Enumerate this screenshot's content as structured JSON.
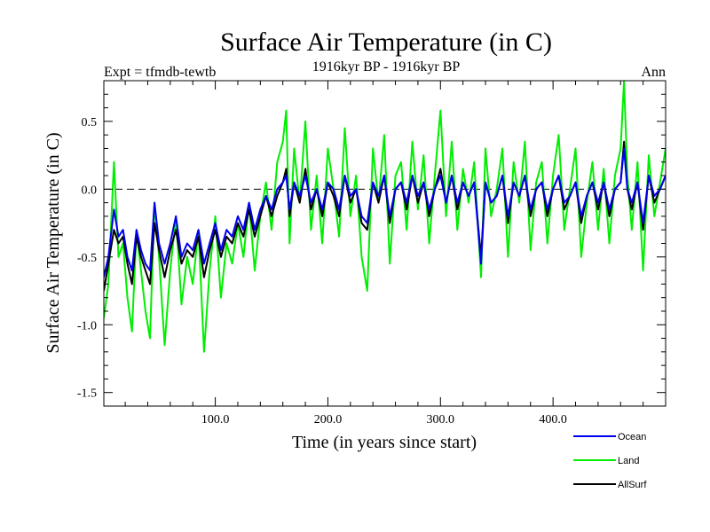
{
  "chart_data": {
    "type": "line",
    "title": "Surface Air Temperature (in C)",
    "subtitle": "1916kyr BP - 1916kyr BP",
    "left_label": "Expt = tfmdb-tewtb",
    "right_label": "Ann",
    "xlabel": "Time (in years since start)",
    "ylabel": "Surface Air Temperature (in C)",
    "xlim": [
      1,
      500
    ],
    "ylim": [
      -1.6,
      0.8
    ],
    "xticks": [
      100,
      200,
      300,
      400
    ],
    "xtick_labels": [
      "100.0",
      "200.0",
      "300.0",
      "400.0"
    ],
    "yticks": [
      -1.5,
      -1.0,
      -0.5,
      0.0,
      0.5
    ],
    "ytick_labels": [
      "-1.5",
      "-1.0",
      "-0.5",
      "0.0",
      "0.5"
    ],
    "reference_line": 0.0,
    "legend_position": "bottom-right, below plot",
    "series": [
      {
        "name": "Land",
        "color": "#00ee00",
        "x": [
          1,
          5,
          10,
          14,
          18,
          22,
          26,
          30,
          34,
          38,
          42,
          46,
          50,
          55,
          60,
          65,
          70,
          75,
          80,
          85,
          90,
          95,
          100,
          105,
          110,
          115,
          120,
          125,
          130,
          135,
          140,
          145,
          150,
          155,
          160,
          163,
          166,
          170,
          175,
          180,
          185,
          190,
          195,
          200,
          205,
          210,
          215,
          220,
          225,
          230,
          235,
          240,
          245,
          250,
          255,
          260,
          265,
          270,
          275,
          280,
          285,
          290,
          295,
          300,
          305,
          310,
          315,
          320,
          325,
          330,
          336,
          340,
          345,
          350,
          355,
          360,
          365,
          370,
          375,
          380,
          385,
          390,
          395,
          400,
          405,
          410,
          415,
          420,
          425,
          430,
          435,
          440,
          445,
          450,
          455,
          460,
          463,
          466,
          470,
          475,
          480,
          485,
          490,
          495,
          500
        ],
        "values": [
          -0.95,
          -0.7,
          0.2,
          -0.5,
          -0.4,
          -0.8,
          -1.05,
          -0.3,
          -0.6,
          -0.9,
          -1.1,
          -0.1,
          -0.5,
          -1.15,
          -0.6,
          -0.2,
          -0.85,
          -0.5,
          -0.7,
          -0.3,
          -1.2,
          -0.6,
          -0.2,
          -0.8,
          -0.4,
          -0.55,
          -0.25,
          -0.5,
          -0.1,
          -0.6,
          -0.2,
          0.05,
          -0.3,
          0.2,
          0.35,
          0.58,
          -0.4,
          0.3,
          -0.1,
          0.5,
          -0.3,
          0.1,
          -0.4,
          0.3,
          0.0,
          -0.35,
          0.45,
          -0.2,
          0.1,
          -0.5,
          -0.75,
          0.3,
          -0.1,
          0.4,
          -0.55,
          0.1,
          0.2,
          -0.3,
          0.35,
          -0.15,
          0.25,
          -0.4,
          0.1,
          0.58,
          -0.2,
          0.35,
          -0.3,
          0.15,
          -0.1,
          0.2,
          -0.65,
          0.3,
          -0.2,
          0.0,
          0.3,
          -0.5,
          0.2,
          -0.1,
          0.35,
          -0.45,
          0.05,
          0.2,
          -0.4,
          0.1,
          0.4,
          -0.3,
          0.0,
          0.3,
          -0.5,
          -0.1,
          0.2,
          -0.3,
          0.15,
          -0.4,
          0.1,
          0.3,
          0.8,
          0.1,
          -0.3,
          0.2,
          -0.6,
          0.25,
          -0.2,
          0.05,
          0.3
        ]
      },
      {
        "name": "AllSurf",
        "color": "#000000",
        "x": [
          1,
          5,
          10,
          14,
          18,
          22,
          26,
          30,
          34,
          38,
          42,
          46,
          50,
          55,
          60,
          65,
          70,
          75,
          80,
          85,
          90,
          95,
          100,
          105,
          110,
          115,
          120,
          125,
          130,
          135,
          140,
          145,
          150,
          155,
          160,
          163,
          166,
          170,
          175,
          180,
          185,
          190,
          195,
          200,
          205,
          210,
          215,
          220,
          225,
          230,
          235,
          240,
          245,
          250,
          255,
          260,
          265,
          270,
          275,
          280,
          285,
          290,
          295,
          300,
          305,
          310,
          315,
          320,
          325,
          330,
          336,
          340,
          345,
          350,
          355,
          360,
          365,
          370,
          375,
          380,
          385,
          390,
          395,
          400,
          405,
          410,
          415,
          420,
          425,
          430,
          435,
          440,
          445,
          450,
          455,
          460,
          463,
          466,
          470,
          475,
          480,
          485,
          490,
          495,
          500
        ],
        "values": [
          -0.75,
          -0.55,
          -0.3,
          -0.4,
          -0.35,
          -0.55,
          -0.7,
          -0.35,
          -0.5,
          -0.6,
          -0.7,
          -0.25,
          -0.45,
          -0.65,
          -0.45,
          -0.3,
          -0.55,
          -0.45,
          -0.5,
          -0.35,
          -0.65,
          -0.45,
          -0.3,
          -0.5,
          -0.35,
          -0.4,
          -0.25,
          -0.35,
          -0.15,
          -0.35,
          -0.2,
          -0.05,
          -0.2,
          -0.05,
          0.05,
          0.15,
          -0.2,
          0.05,
          -0.1,
          0.15,
          -0.15,
          0.0,
          -0.2,
          0.05,
          -0.05,
          -0.2,
          0.1,
          -0.1,
          0.0,
          -0.25,
          -0.3,
          0.05,
          -0.1,
          0.1,
          -0.25,
          0.0,
          0.05,
          -0.15,
          0.1,
          -0.1,
          0.05,
          -0.2,
          0.0,
          0.15,
          -0.1,
          0.1,
          -0.15,
          0.05,
          -0.05,
          0.05,
          -0.5,
          0.05,
          -0.1,
          -0.05,
          0.1,
          -0.25,
          0.05,
          -0.05,
          0.1,
          -0.2,
          0.0,
          0.05,
          -0.2,
          0.0,
          0.1,
          -0.15,
          -0.05,
          0.05,
          -0.25,
          -0.05,
          0.05,
          -0.15,
          0.05,
          -0.2,
          0.0,
          0.05,
          0.35,
          0.0,
          -0.15,
          0.05,
          -0.3,
          0.1,
          -0.1,
          0.0,
          0.1
        ]
      },
      {
        "name": "Ocean",
        "color": "#0000ee",
        "x": [
          1,
          5,
          10,
          14,
          18,
          22,
          26,
          30,
          34,
          38,
          42,
          46,
          50,
          55,
          60,
          65,
          70,
          75,
          80,
          85,
          90,
          95,
          100,
          105,
          110,
          115,
          120,
          125,
          130,
          135,
          140,
          145,
          150,
          155,
          160,
          163,
          166,
          170,
          175,
          180,
          185,
          190,
          195,
          200,
          205,
          210,
          215,
          220,
          225,
          230,
          235,
          240,
          245,
          250,
          255,
          260,
          265,
          270,
          275,
          280,
          285,
          290,
          295,
          300,
          305,
          310,
          315,
          320,
          325,
          330,
          336,
          340,
          345,
          350,
          355,
          360,
          365,
          370,
          375,
          380,
          385,
          390,
          395,
          400,
          405,
          410,
          415,
          420,
          425,
          430,
          435,
          440,
          445,
          450,
          455,
          460,
          463,
          466,
          470,
          475,
          480,
          485,
          490,
          495,
          500
        ],
        "values": [
          -0.65,
          -0.5,
          -0.15,
          -0.35,
          -0.3,
          -0.5,
          -0.6,
          -0.3,
          -0.45,
          -0.55,
          -0.6,
          -0.1,
          -0.4,
          -0.55,
          -0.4,
          -0.2,
          -0.5,
          -0.4,
          -0.45,
          -0.3,
          -0.55,
          -0.4,
          -0.25,
          -0.45,
          -0.3,
          -0.35,
          -0.2,
          -0.3,
          -0.1,
          -0.3,
          -0.15,
          -0.05,
          -0.15,
          0.0,
          0.05,
          0.1,
          -0.15,
          0.05,
          -0.05,
          0.1,
          -0.1,
          0.0,
          -0.15,
          0.05,
          0.0,
          -0.15,
          0.1,
          -0.05,
          0.0,
          -0.2,
          -0.25,
          0.05,
          -0.05,
          0.1,
          -0.2,
          0.0,
          0.05,
          -0.1,
          0.1,
          -0.05,
          0.05,
          -0.15,
          0.0,
          0.1,
          -0.1,
          0.1,
          -0.1,
          0.05,
          -0.05,
          0.05,
          -0.55,
          0.05,
          -0.1,
          -0.05,
          0.1,
          -0.2,
          0.05,
          -0.05,
          0.1,
          -0.15,
          0.0,
          0.05,
          -0.15,
          0.0,
          0.1,
          -0.1,
          -0.05,
          0.05,
          -0.2,
          -0.05,
          0.05,
          -0.1,
          0.05,
          -0.15,
          0.0,
          0.05,
          0.3,
          0.0,
          -0.1,
          0.05,
          -0.25,
          0.1,
          -0.05,
          0.0,
          0.1
        ]
      }
    ]
  }
}
